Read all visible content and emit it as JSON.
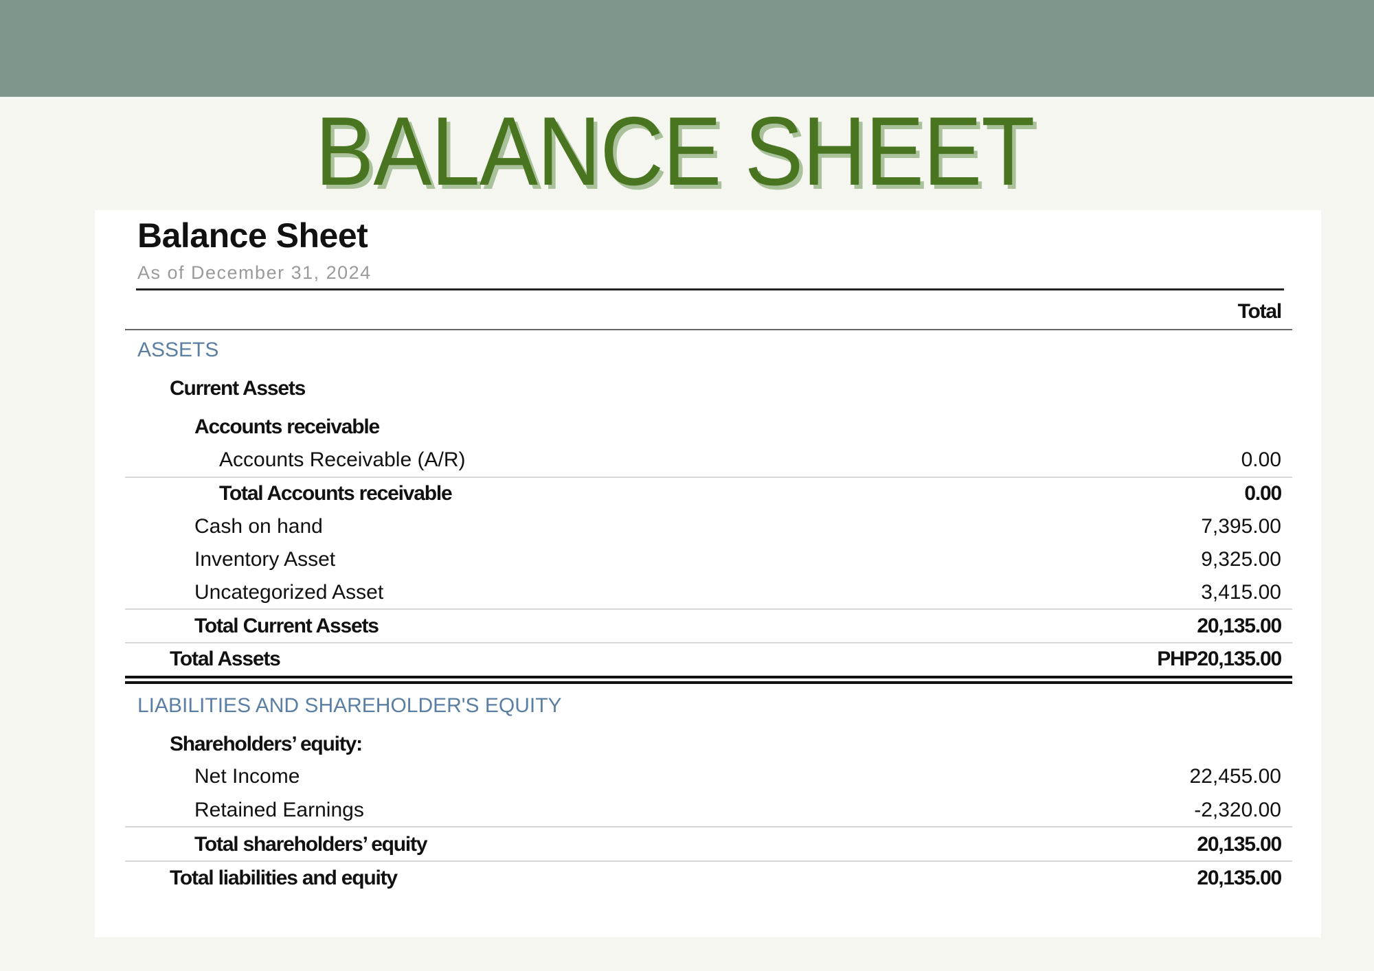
{
  "banner": {
    "title": "BALANCE SHEET",
    "colors": {
      "band": "#7f978a",
      "title": "#4a7520",
      "title_shadow": "#aac29b",
      "background": "#f6f6f0",
      "section_heading": "#5b7fa3"
    }
  },
  "report": {
    "title": "Balance Sheet",
    "subtitle": "As of December 31, 2024",
    "column_header": "Total",
    "assets": {
      "heading": "ASSETS",
      "current_assets": "Current Assets",
      "accounts_receivable_group": "Accounts receivable",
      "ar": {
        "label": "Accounts Receivable (A/R)",
        "value": "0.00"
      },
      "total_ar": {
        "label": "Total Accounts receivable",
        "value": "0.00"
      },
      "cash": {
        "label": "Cash on hand",
        "value": "7,395.00"
      },
      "inventory": {
        "label": "Inventory Asset",
        "value": "9,325.00"
      },
      "uncategorized": {
        "label": "Uncategorized Asset",
        "value": "3,415.00"
      },
      "total_current": {
        "label": "Total Current Assets",
        "value": "20,135.00"
      },
      "total_assets": {
        "label": "Total Assets",
        "value": "PHP20,135.00"
      }
    },
    "liabilities": {
      "heading": "LIABILITIES AND SHAREHOLDER'S EQUITY",
      "equity_group": "Shareholders’ equity:",
      "net_income": {
        "label": "Net Income",
        "value": "22,455.00"
      },
      "retained": {
        "label": "Retained Earnings",
        "value": "-2,320.00"
      },
      "total_equity": {
        "label": "Total shareholders’ equity",
        "value": "20,135.00"
      },
      "total_liab_equity": {
        "label": "Total liabilities and equity",
        "value": "20,135.00"
      }
    }
  }
}
